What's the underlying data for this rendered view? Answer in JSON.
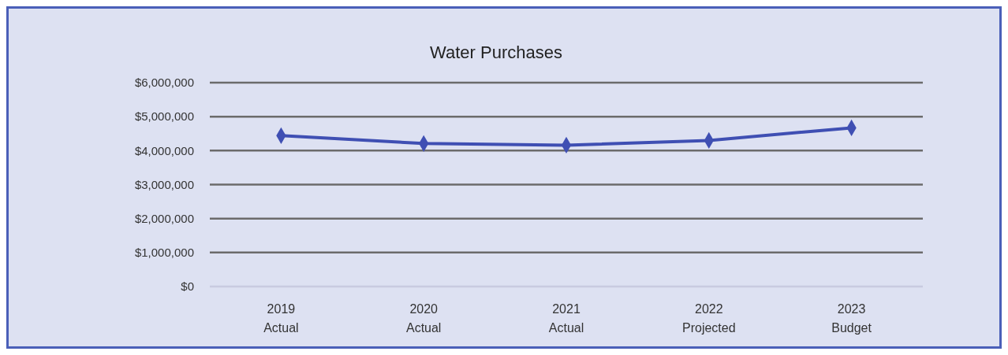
{
  "chart_data": {
    "type": "line",
    "title": "Water Purchases",
    "categories": [
      "2019 Actual",
      "2020 Actual",
      "2021 Actual",
      "2022 Projected",
      "2023 Budget"
    ],
    "series": [
      {
        "color": "#3f4fb3",
        "values": [
          4440000,
          4210000,
          4160000,
          4300000,
          4670000
        ]
      }
    ],
    "ylim": [
      0,
      6000000
    ],
    "yticks": [
      {
        "value": 0,
        "label": "$0"
      },
      {
        "value": 1000000,
        "label": "$1,000,000"
      },
      {
        "value": 2000000,
        "label": "$2,000,000"
      },
      {
        "value": 3000000,
        "label": "$3,000,000"
      },
      {
        "value": 4000000,
        "label": "$4,000,000"
      },
      {
        "value": 5000000,
        "label": "$5,000,000"
      },
      {
        "value": 6000000,
        "label": "$6,000,000"
      }
    ],
    "grid": "y",
    "marker": "diamond",
    "line_style": "solid"
  }
}
